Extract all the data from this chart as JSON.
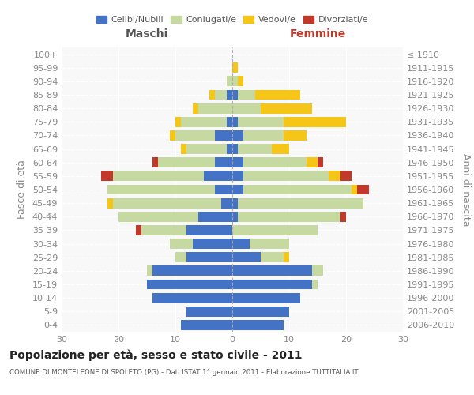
{
  "age_groups": [
    "100+",
    "95-99",
    "90-94",
    "85-89",
    "80-84",
    "75-79",
    "70-74",
    "65-69",
    "60-64",
    "55-59",
    "50-54",
    "45-49",
    "40-44",
    "35-39",
    "30-34",
    "25-29",
    "20-24",
    "15-19",
    "10-14",
    "5-9",
    "0-4"
  ],
  "birth_years": [
    "≤ 1910",
    "1911-1915",
    "1916-1920",
    "1921-1925",
    "1926-1930",
    "1931-1935",
    "1936-1940",
    "1941-1945",
    "1946-1950",
    "1951-1955",
    "1956-1960",
    "1961-1965",
    "1966-1970",
    "1971-1975",
    "1976-1980",
    "1981-1985",
    "1986-1990",
    "1991-1995",
    "1996-2000",
    "2001-2005",
    "2006-2010"
  ],
  "colors": {
    "celibe": "#4472c4",
    "coniugato": "#c5d9a0",
    "vedovo": "#f5c518",
    "divorziato": "#c0392b"
  },
  "maschi": {
    "celibe": [
      0,
      0,
      0,
      1,
      0,
      1,
      3,
      1,
      3,
      5,
      3,
      2,
      6,
      8,
      7,
      8,
      14,
      15,
      14,
      8,
      9
    ],
    "coniugato": [
      0,
      0,
      1,
      2,
      6,
      8,
      7,
      7,
      10,
      16,
      19,
      19,
      14,
      8,
      4,
      2,
      1,
      0,
      0,
      0,
      0
    ],
    "vedovo": [
      0,
      0,
      0,
      1,
      1,
      1,
      1,
      1,
      0,
      0,
      0,
      1,
      0,
      0,
      0,
      0,
      0,
      0,
      0,
      0,
      0
    ],
    "divorziato": [
      0,
      0,
      0,
      0,
      0,
      0,
      0,
      0,
      1,
      2,
      0,
      0,
      0,
      1,
      0,
      0,
      0,
      0,
      0,
      0,
      0
    ]
  },
  "femmine": {
    "nubile": [
      0,
      0,
      0,
      1,
      0,
      1,
      2,
      1,
      2,
      2,
      2,
      1,
      1,
      0,
      3,
      5,
      14,
      14,
      12,
      10,
      9
    ],
    "coniugata": [
      0,
      0,
      1,
      3,
      5,
      8,
      7,
      6,
      11,
      15,
      19,
      22,
      18,
      15,
      7,
      4,
      2,
      1,
      0,
      0,
      0
    ],
    "vedova": [
      0,
      1,
      1,
      8,
      9,
      11,
      4,
      3,
      2,
      2,
      1,
      0,
      0,
      0,
      0,
      1,
      0,
      0,
      0,
      0,
      0
    ],
    "divorziata": [
      0,
      0,
      0,
      0,
      0,
      0,
      0,
      0,
      1,
      2,
      2,
      0,
      1,
      0,
      0,
      0,
      0,
      0,
      0,
      0,
      0
    ]
  },
  "title": "Popolazione per età, sesso e stato civile - 2011",
  "subtitle": "COMUNE DI MONTELEONE DI SPOLETO (PG) - Dati ISTAT 1° gennaio 2011 - Elaborazione TUTTITALIA.IT",
  "xlabel_left": "Maschi",
  "xlabel_right": "Femmine",
  "ylabel_left": "Fasce di età",
  "ylabel_right": "Anni di nascita",
  "xlim": 30,
  "legend_labels": [
    "Celibi/Nubili",
    "Coniugati/e",
    "Vedovi/e",
    "Divorziati/e"
  ],
  "background_color": "#f0f0f0",
  "plot_bg": "#f8f8f8"
}
